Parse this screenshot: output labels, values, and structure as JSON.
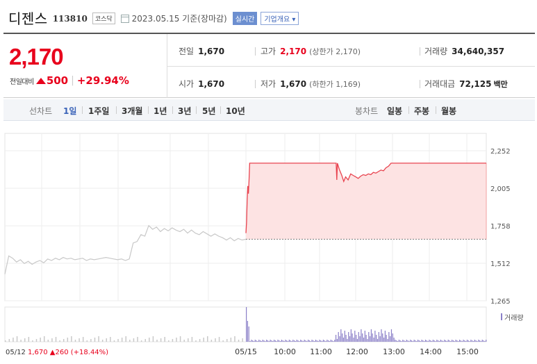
{
  "header": {
    "name": "디젠스",
    "code": "113810",
    "market": "코스닥",
    "date_text": "2023.05.15 기준(장마감)",
    "live_label": "실시간",
    "company_label": "기업개요 ▾"
  },
  "quote": {
    "price": "2,170",
    "change_label": "전일대비",
    "change": "500",
    "change_pct": "+29.94%",
    "prev_close": {
      "label": "전일",
      "value": "1,670"
    },
    "open": {
      "label": "시가",
      "value": "1,670"
    },
    "high": {
      "label": "고가",
      "value": "2,170",
      "sub": "(상한가 2,170)"
    },
    "low": {
      "label": "저가",
      "value": "1,670",
      "sub": "(하한가 1,169)"
    },
    "volume": {
      "label": "거래량",
      "value": "34,640,357"
    },
    "amount": {
      "label": "거래대금",
      "value": "72,125",
      "unit": "백만"
    }
  },
  "period_bar": {
    "line_label": "선차트",
    "periods": [
      "1일",
      "1주일",
      "3개월",
      "1년",
      "3년",
      "5년",
      "10년"
    ],
    "candle_label": "봉차트",
    "candles": [
      "일봉",
      "주봉",
      "월봉"
    ]
  },
  "colors": {
    "up": "#e8001c",
    "accent": "#3a63b8",
    "volume": "#8a7fc8"
  },
  "chart_data": {
    "type": "line",
    "y_ticks": [
      "2,252",
      "2,005",
      "1,758",
      "1,512",
      "1,265"
    ],
    "ylim": [
      1265,
      2252
    ],
    "base_price": 1670,
    "volume_label": "거래량",
    "prev_day_label": {
      "date": "05/12",
      "price": "1,670",
      "change": "260",
      "pct": "(+18.44%)"
    },
    "x_labels": [
      "05/15",
      "10:00",
      "11:00",
      "12:00",
      "13:00",
      "14:00",
      "15:00"
    ],
    "prev_series": [
      [
        0,
        1440
      ],
      [
        1,
        1560
      ],
      [
        2,
        1545
      ],
      [
        3,
        1520
      ],
      [
        4,
        1535
      ],
      [
        5,
        1510
      ],
      [
        6,
        1525
      ],
      [
        7,
        1505
      ],
      [
        8,
        1520
      ],
      [
        9,
        1530
      ],
      [
        10,
        1515
      ],
      [
        11,
        1540
      ],
      [
        12,
        1530
      ],
      [
        13,
        1545
      ],
      [
        14,
        1535
      ],
      [
        15,
        1550
      ],
      [
        16,
        1540
      ],
      [
        17,
        1545
      ],
      [
        18,
        1535
      ],
      [
        19,
        1540
      ],
      [
        20,
        1545
      ],
      [
        21,
        1530
      ],
      [
        22,
        1540
      ],
      [
        23,
        1535
      ],
      [
        24,
        1540
      ],
      [
        25,
        1545
      ],
      [
        26,
        1550
      ],
      [
        27,
        1545
      ],
      [
        28,
        1540
      ],
      [
        29,
        1535
      ],
      [
        30,
        1540
      ],
      [
        31,
        1530
      ],
      [
        32,
        1540
      ],
      [
        33,
        1645
      ],
      [
        34,
        1655
      ],
      [
        35,
        1700
      ],
      [
        36,
        1690
      ],
      [
        37,
        1760
      ],
      [
        38,
        1735
      ],
      [
        39,
        1750
      ],
      [
        40,
        1720
      ],
      [
        41,
        1740
      ],
      [
        42,
        1725
      ],
      [
        43,
        1745
      ],
      [
        44,
        1730
      ],
      [
        45,
        1720
      ],
      [
        46,
        1735
      ],
      [
        47,
        1710
      ],
      [
        48,
        1730
      ],
      [
        49,
        1710
      ],
      [
        50,
        1700
      ],
      [
        51,
        1720
      ],
      [
        52,
        1705
      ],
      [
        53,
        1690
      ],
      [
        54,
        1705
      ],
      [
        55,
        1690
      ],
      [
        56,
        1680
      ],
      [
        57,
        1665
      ],
      [
        58,
        1680
      ],
      [
        59,
        1660
      ],
      [
        60,
        1675
      ],
      [
        61,
        1665
      ],
      [
        62,
        1670
      ]
    ],
    "today_series": [
      [
        0,
        1710
      ],
      [
        1,
        1780
      ],
      [
        2,
        1930
      ],
      [
        3,
        2020
      ],
      [
        4,
        1970
      ],
      [
        5,
        2060
      ],
      [
        6,
        2170
      ],
      [
        8,
        2170
      ],
      [
        20,
        2170
      ],
      [
        40,
        2170
      ],
      [
        60,
        2170
      ],
      [
        80,
        2170
      ],
      [
        100,
        2170
      ],
      [
        120,
        2170
      ],
      [
        140,
        2170
      ],
      [
        143,
        2170
      ],
      [
        144,
        2060
      ],
      [
        145,
        2170
      ],
      [
        148,
        2130
      ],
      [
        152,
        2090
      ],
      [
        155,
        2050
      ],
      [
        158,
        2080
      ],
      [
        162,
        2060
      ],
      [
        166,
        2100
      ],
      [
        170,
        2090
      ],
      [
        174,
        2080
      ],
      [
        178,
        2070
      ],
      [
        182,
        2085
      ],
      [
        186,
        2095
      ],
      [
        190,
        2090
      ],
      [
        194,
        2100
      ],
      [
        198,
        2095
      ],
      [
        202,
        2110
      ],
      [
        206,
        2105
      ],
      [
        210,
        2115
      ],
      [
        214,
        2125
      ],
      [
        218,
        2120
      ],
      [
        222,
        2140
      ],
      [
        226,
        2150
      ],
      [
        230,
        2170
      ],
      [
        260,
        2170
      ],
      [
        300,
        2170
      ],
      [
        340,
        2170
      ],
      [
        381,
        2170
      ]
    ]
  }
}
